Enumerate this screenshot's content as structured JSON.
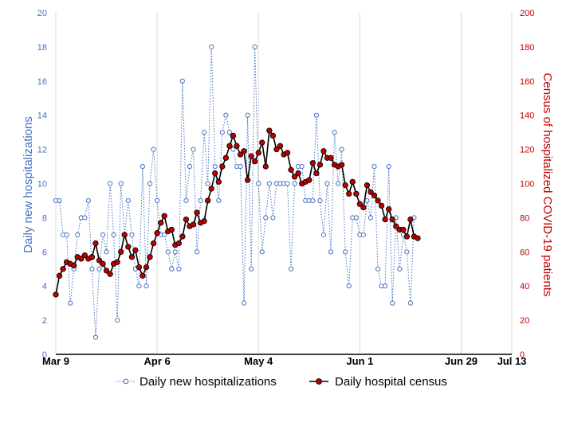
{
  "chart_data": {
    "type": "line",
    "xlabel": "",
    "x_ticks": [
      "Mar 9",
      "Apr 6",
      "May 4",
      "Jun 1",
      "Jun 29",
      "Jul 13"
    ],
    "x_range_days": [
      0,
      126
    ],
    "grid": "vertical",
    "legend_position": "bottom",
    "y_left": {
      "label": "Daily new hospitalizations",
      "range": [
        0,
        20
      ],
      "ticks": [
        0,
        2,
        4,
        6,
        8,
        10,
        12,
        14,
        16,
        18,
        20
      ],
      "color": "#4472c4"
    },
    "y_right": {
      "label": "Census of hospitalized COVID-19  patients",
      "range": [
        0,
        200
      ],
      "ticks": [
        0,
        20,
        40,
        60,
        80,
        100,
        120,
        140,
        160,
        180,
        200
      ],
      "color": "#c00000"
    },
    "series": [
      {
        "name": "Daily new hospitalizations",
        "axis": "left",
        "style": "dotted-line-open-circles",
        "color": "#4472c4",
        "values": [
          9,
          9,
          7,
          7,
          3,
          5,
          7,
          8,
          8,
          9,
          5,
          1,
          5,
          7,
          6,
          10,
          7,
          2,
          10,
          7,
          9,
          7,
          5,
          4,
          11,
          4,
          10,
          12,
          9,
          7,
          7,
          6,
          5,
          6,
          5,
          16,
          9,
          11,
          12,
          6,
          9,
          13,
          10,
          18,
          11,
          9,
          13,
          14,
          13,
          12,
          11,
          11,
          3,
          14,
          5,
          18,
          10,
          6,
          8,
          10,
          8,
          10,
          10,
          10,
          10,
          5,
          10,
          11,
          11,
          9,
          9,
          9,
          14,
          9,
          7,
          10,
          6,
          13,
          10,
          12,
          6,
          4,
          8,
          8,
          7,
          7,
          9,
          8,
          11,
          5,
          4,
          4,
          11,
          3,
          8,
          5,
          7,
          6,
          3,
          8
        ]
      },
      {
        "name": "Daily hospital census",
        "axis": "right",
        "style": "solid-line-filled-circles",
        "color": "#000000",
        "marker_fill": "#c00000",
        "values": [
          35,
          46,
          50,
          54,
          53,
          52,
          57,
          56,
          58,
          56,
          57,
          65,
          55,
          53,
          49,
          47,
          53,
          54,
          60,
          70,
          63,
          57,
          61,
          51,
          46,
          51,
          57,
          65,
          71,
          77,
          81,
          72,
          73,
          64,
          65,
          69,
          79,
          75,
          76,
          83,
          77,
          78,
          90,
          97,
          106,
          101,
          110,
          115,
          122,
          128,
          122,
          117,
          119,
          102,
          116,
          113,
          118,
          124,
          110,
          131,
          128,
          120,
          122,
          117,
          118,
          108,
          104,
          106,
          100,
          101,
          102,
          112,
          106,
          111,
          119,
          115,
          115,
          111,
          110,
          111,
          99,
          94,
          101,
          94,
          88,
          86,
          99,
          95,
          93,
          90,
          87,
          79,
          85,
          79,
          75,
          73,
          73,
          69,
          79,
          69,
          68
        ]
      }
    ]
  }
}
